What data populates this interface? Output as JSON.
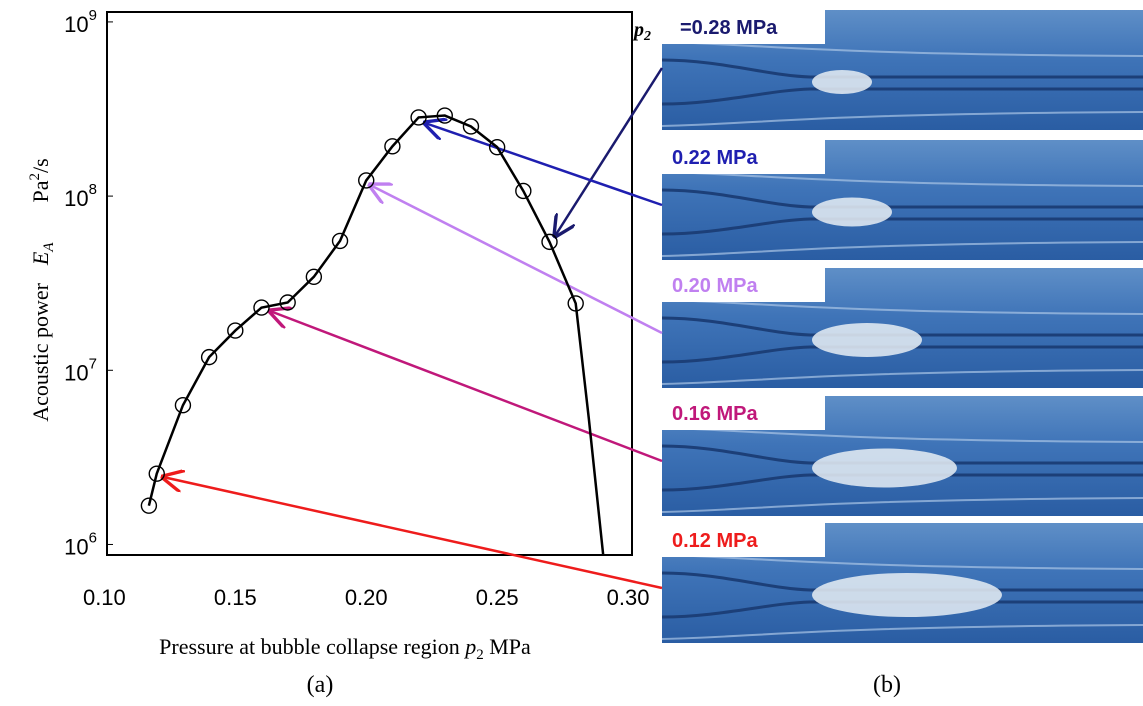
{
  "chart_data": {
    "type": "scatter",
    "log_y": true,
    "xlabel": {
      "text": "Pressure at bubble collapse region ",
      "var": "p",
      "sub": "2",
      "unit": " MPa"
    },
    "ylabel": {
      "text": "Acoustic power",
      "var": "E",
      "sub": "A",
      "unit": "Pa",
      "unit_sup": "2",
      "unit_tail": "/s"
    },
    "caption": "(a)",
    "xlim": [
      0.101,
      0.3015
    ],
    "ylim": [
      870000,
      1140000000
    ],
    "xticks": [
      {
        "value": 0.1,
        "label": "0.10"
      },
      0.15,
      {
        "value": 0.2,
        "label": "0.20"
      },
      0.25,
      {
        "value": 0.3,
        "label": "0.30"
      }
    ],
    "yticks": [
      {
        "value": 1000000,
        "label": "10",
        "sup": "6"
      },
      {
        "value": 10000000,
        "label": "10",
        "sup": "7"
      },
      {
        "value": 100000000,
        "label": "10",
        "sup": "8"
      },
      {
        "value": 1000000000,
        "label": "10",
        "sup": "9"
      }
    ],
    "series": [
      {
        "style": "markers",
        "color": "#000000",
        "x": [
          0.117,
          0.12,
          0.13,
          0.14,
          0.15,
          0.16,
          0.17,
          0.18,
          0.19,
          0.2,
          0.21,
          0.22,
          0.23,
          0.24,
          0.25,
          0.26,
          0.27,
          0.28
        ],
        "values": [
          1670000,
          2550000,
          6300000,
          11900000,
          16900000,
          22900000,
          24500000,
          34400000,
          55300000,
          123000000,
          193000000,
          283000000,
          290000000,
          251000000,
          191000000,
          107000000,
          54600000,
          24200000
        ]
      },
      {
        "style": "line",
        "color": "#000000",
        "x": [
          0.117,
          0.12,
          0.13,
          0.14,
          0.15,
          0.16,
          0.17,
          0.18,
          0.19,
          0.2,
          0.21,
          0.22,
          0.23,
          0.24,
          0.25,
          0.26,
          0.27,
          0.28,
          0.285,
          0.2905
        ],
        "values": [
          1670000,
          2550000,
          6300000,
          11900000,
          16900000,
          22900000,
          24500000,
          34400000,
          55300000,
          123000000,
          193000000,
          283000000,
          290000000,
          251000000,
          191000000,
          107000000,
          54600000,
          24200000,
          5300000,
          870000
        ]
      }
    ]
  },
  "photos": {
    "caption": "(b)",
    "prefix_var": "p",
    "prefix_sub": "2",
    "panels": [
      {
        "label": "=0.28 MPa",
        "color": "#1a1a6e"
      },
      {
        "label": "0.22 MPa",
        "color": "#1f1fb0"
      },
      {
        "label": "0.20 MPa",
        "color": "#c080f0"
      },
      {
        "label": "0.16 MPa",
        "color": "#c0187a"
      },
      {
        "label": "0.12 MPa",
        "color": "#ee1c1c"
      }
    ]
  }
}
